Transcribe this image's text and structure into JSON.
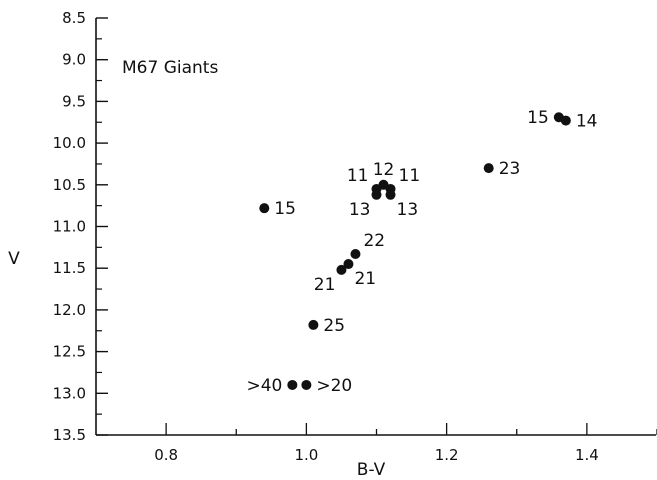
{
  "chart_data": {
    "type": "scatter",
    "title": "M67 Giants",
    "xlabel": "B-V",
    "ylabel": "V",
    "xlim": [
      0.7,
      1.5
    ],
    "ylim": [
      8.5,
      13.5
    ],
    "y_inverted": true,
    "grid": false,
    "x_ticks": [
      "0.8",
      "1.0",
      "1.2",
      "1.4"
    ],
    "x_tick_values": [
      0.8,
      1.0,
      1.2,
      1.4
    ],
    "y_ticks": [
      "8.5",
      "9.0",
      "9.5",
      "10.0",
      "10.5",
      "11.0",
      "11.5",
      "12.0",
      "12.5",
      "13.0",
      "13.5"
    ],
    "y_tick_values": [
      8.5,
      9.0,
      9.5,
      10.0,
      10.5,
      11.0,
      11.5,
      12.0,
      12.5,
      13.0,
      13.5
    ],
    "points": [
      {
        "x": 0.94,
        "y": 10.78,
        "label": "15",
        "label_side": "right"
      },
      {
        "x": 1.36,
        "y": 9.69,
        "label": "15",
        "label_side": "left"
      },
      {
        "x": 1.37,
        "y": 9.73,
        "label": "14",
        "label_side": "right"
      },
      {
        "x": 1.26,
        "y": 10.3,
        "label": "23",
        "label_side": "right"
      },
      {
        "x": 1.11,
        "y": 10.5,
        "label": "12",
        "label_side": "above"
      },
      {
        "x": 1.1,
        "y": 10.55,
        "label": "11",
        "label_side": "upper-left"
      },
      {
        "x": 1.12,
        "y": 10.55,
        "label": "11",
        "label_side": "upper-right"
      },
      {
        "x": 1.1,
        "y": 10.62,
        "label": "13",
        "label_side": "lower-left"
      },
      {
        "x": 1.12,
        "y": 10.62,
        "label": "13",
        "label_side": "lower-right"
      },
      {
        "x": 1.07,
        "y": 11.33,
        "label": "22",
        "label_side": "upper-right"
      },
      {
        "x": 1.06,
        "y": 11.45,
        "label": "21",
        "label_side": "lower-right"
      },
      {
        "x": 1.05,
        "y": 11.52,
        "label": "21",
        "label_side": "lower-left"
      },
      {
        "x": 1.01,
        "y": 12.18,
        "label": "25",
        "label_side": "right"
      },
      {
        "x": 0.98,
        "y": 12.9,
        "label": ">40",
        "label_side": "left"
      },
      {
        "x": 1.0,
        "y": 12.9,
        "label": ">20",
        "label_side": "right"
      }
    ]
  }
}
